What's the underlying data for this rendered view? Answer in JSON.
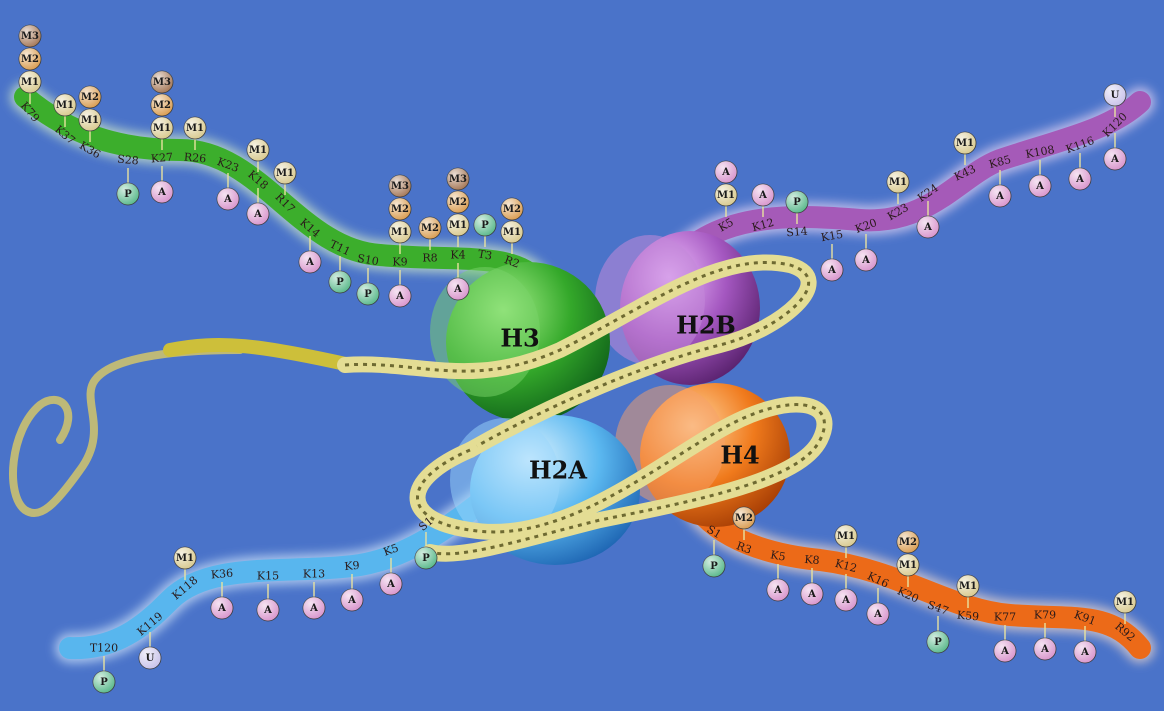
{
  "colors": {
    "background": "#4a73c9",
    "h3": "#3cae2c",
    "h2b": "#a55ab8",
    "h2a": "#58b6ee",
    "h4": "#ec6a18",
    "dna": "#d7d27a",
    "acetyl": "#d894cc",
    "phospho": "#58b88a",
    "methyl1": "#d8c98e",
    "methyl2": "#d99c50",
    "methyl3": "#a57756",
    "ubiquitin": "#c8c2ea"
  },
  "cores": {
    "h3": "H3",
    "h2b": "H2B",
    "h2a": "H2A",
    "h4": "H4"
  },
  "tails": {
    "h3": [
      {
        "res": "K79",
        "mods": [
          [
            "up",
            [
              "M1",
              "M2",
              "M3"
            ]
          ]
        ]
      },
      {
        "res": "K37",
        "mods": [
          [
            "up",
            [
              "M1"
            ]
          ]
        ]
      },
      {
        "res": "K36",
        "mods": [
          [
            "up",
            [
              "M1",
              "M2"
            ]
          ]
        ]
      },
      {
        "res": "S28",
        "mods": [
          [
            "down",
            [
              "P"
            ]
          ]
        ]
      },
      {
        "res": "K27",
        "mods": [
          [
            "up",
            [
              "M1",
              "M2",
              "M3"
            ]
          ],
          [
            "down",
            [
              "A"
            ]
          ]
        ]
      },
      {
        "res": "R26",
        "mods": [
          [
            "up",
            [
              "M1"
            ]
          ]
        ]
      },
      {
        "res": "K23",
        "mods": [
          [
            "down",
            [
              "A"
            ]
          ]
        ]
      },
      {
        "res": "K18",
        "mods": [
          [
            "up",
            [
              "M1"
            ]
          ],
          [
            "down",
            [
              "A"
            ]
          ]
        ]
      },
      {
        "res": "R17",
        "mods": [
          [
            "up",
            [
              "M1"
            ]
          ]
        ]
      },
      {
        "res": "K14",
        "mods": [
          [
            "down",
            [
              "A"
            ]
          ]
        ]
      },
      {
        "res": "T11",
        "mods": [
          [
            "down",
            [
              "P"
            ]
          ]
        ]
      },
      {
        "res": "S10",
        "mods": [
          [
            "down",
            [
              "P"
            ]
          ]
        ]
      },
      {
        "res": "K9",
        "mods": [
          [
            "up",
            [
              "M1",
              "M2",
              "M3"
            ]
          ],
          [
            "down",
            [
              "A"
            ]
          ]
        ]
      },
      {
        "res": "R8",
        "mods": [
          [
            "up",
            [
              "M2"
            ]
          ]
        ]
      },
      {
        "res": "K4",
        "mods": [
          [
            "up",
            [
              "M1",
              "M2",
              "M3"
            ]
          ],
          [
            "down",
            [
              "A"
            ]
          ]
        ]
      },
      {
        "res": "T3",
        "mods": [
          [
            "up",
            [
              "P"
            ]
          ]
        ]
      },
      {
        "res": "R2",
        "mods": [
          [
            "up",
            [
              "M1",
              "M2"
            ]
          ]
        ]
      }
    ],
    "h2b": [
      {
        "res": "K5",
        "mods": [
          [
            "up",
            [
              "M1",
              "A"
            ]
          ]
        ]
      },
      {
        "res": "K12",
        "mods": [
          [
            "up",
            [
              "A"
            ]
          ]
        ]
      },
      {
        "res": "S14",
        "mods": [
          [
            "up",
            [
              "P"
            ]
          ]
        ]
      },
      {
        "res": "K15",
        "mods": [
          [
            "down",
            [
              "A"
            ]
          ]
        ]
      },
      {
        "res": "K20",
        "mods": [
          [
            "down",
            [
              "A"
            ]
          ]
        ]
      },
      {
        "res": "K23",
        "mods": [
          [
            "up",
            [
              "M1"
            ]
          ]
        ]
      },
      {
        "res": "K24",
        "mods": [
          [
            "down",
            [
              "A"
            ]
          ]
        ]
      },
      {
        "res": "K43",
        "mods": [
          [
            "up",
            [
              "M1"
            ]
          ]
        ]
      },
      {
        "res": "K85",
        "mods": [
          [
            "down",
            [
              "A"
            ]
          ]
        ]
      },
      {
        "res": "K108",
        "mods": [
          [
            "down",
            [
              "A"
            ]
          ]
        ]
      },
      {
        "res": "K116",
        "mods": [
          [
            "down",
            [
              "A"
            ]
          ]
        ]
      },
      {
        "res": "K120",
        "mods": [
          [
            "up",
            [
              "U"
            ]
          ],
          [
            "down",
            [
              "A"
            ]
          ]
        ]
      }
    ],
    "h2a": [
      {
        "res": "T120",
        "mods": [
          [
            "down",
            [
              "P"
            ]
          ]
        ]
      },
      {
        "res": "K119",
        "mods": [
          [
            "down",
            [
              "U"
            ]
          ]
        ]
      },
      {
        "res": "K118",
        "mods": [
          [
            "up",
            [
              "M1"
            ]
          ]
        ]
      },
      {
        "res": "K36",
        "mods": [
          [
            "down",
            [
              "A"
            ]
          ]
        ]
      },
      {
        "res": "K15",
        "mods": [
          [
            "down",
            [
              "A"
            ]
          ]
        ]
      },
      {
        "res": "K13",
        "mods": [
          [
            "down",
            [
              "A"
            ]
          ]
        ]
      },
      {
        "res": "K9",
        "mods": [
          [
            "down",
            [
              "A"
            ]
          ]
        ]
      },
      {
        "res": "K5",
        "mods": [
          [
            "down",
            [
              "A"
            ]
          ]
        ]
      },
      {
        "res": "S1",
        "mods": [
          [
            "down",
            [
              "P"
            ]
          ]
        ]
      }
    ],
    "h4": [
      {
        "res": "S1",
        "mods": [
          [
            "down",
            [
              "P"
            ]
          ]
        ]
      },
      {
        "res": "R3",
        "mods": [
          [
            "up",
            [
              "M2"
            ]
          ]
        ]
      },
      {
        "res": "K5",
        "mods": [
          [
            "down",
            [
              "A"
            ]
          ]
        ]
      },
      {
        "res": "K8",
        "mods": [
          [
            "down",
            [
              "A"
            ]
          ]
        ]
      },
      {
        "res": "K12",
        "mods": [
          [
            "up",
            [
              "M1"
            ]
          ],
          [
            "down",
            [
              "A"
            ]
          ]
        ]
      },
      {
        "res": "K16",
        "mods": [
          [
            "down",
            [
              "A"
            ]
          ]
        ]
      },
      {
        "res": "K20",
        "mods": [
          [
            "up",
            [
              "M1",
              "M2"
            ]
          ]
        ]
      },
      {
        "res": "S47",
        "mods": [
          [
            "down",
            [
              "P"
            ]
          ]
        ]
      },
      {
        "res": "K59",
        "mods": [
          [
            "up",
            [
              "M1"
            ]
          ]
        ]
      },
      {
        "res": "K77",
        "mods": [
          [
            "down",
            [
              "A"
            ]
          ]
        ]
      },
      {
        "res": "K79",
        "mods": [
          [
            "down",
            [
              "A"
            ]
          ]
        ]
      },
      {
        "res": "K91",
        "mods": [
          [
            "down",
            [
              "A"
            ]
          ]
        ]
      },
      {
        "res": "R92",
        "mods": [
          [
            "up",
            [
              "M1"
            ]
          ]
        ]
      }
    ]
  }
}
